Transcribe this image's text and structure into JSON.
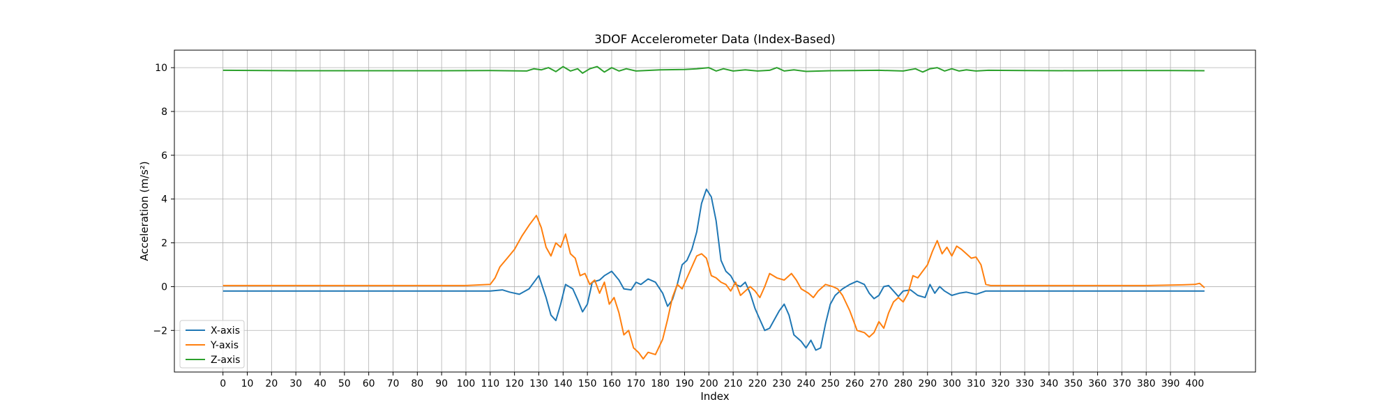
{
  "chart_data": {
    "type": "line",
    "title": "3DOF Accelerometer Data (Index-Based)",
    "xlabel": "Index",
    "ylabel": "Acceleration (m/s²)",
    "xlim": [
      -20,
      425
    ],
    "ylim": [
      -3.9,
      10.8
    ],
    "xticks": [
      0,
      10,
      20,
      30,
      40,
      50,
      60,
      70,
      80,
      90,
      100,
      110,
      120,
      130,
      140,
      150,
      160,
      170,
      180,
      190,
      200,
      210,
      220,
      230,
      240,
      250,
      260,
      270,
      280,
      290,
      300,
      310,
      320,
      330,
      340,
      350,
      360,
      370,
      380,
      390,
      400
    ],
    "yticks": [
      -2,
      0,
      2,
      4,
      6,
      8,
      10
    ],
    "ytick_labels": [
      "−2",
      "0",
      "2",
      "4",
      "6",
      "8",
      "10"
    ],
    "grid": true,
    "legend_position": "lower-left",
    "series": [
      {
        "name": "X-axis",
        "color": "#1f77b4",
        "points": [
          [
            0,
            -0.2
          ],
          [
            20,
            -0.2
          ],
          [
            40,
            -0.2
          ],
          [
            60,
            -0.2
          ],
          [
            80,
            -0.2
          ],
          [
            100,
            -0.2
          ],
          [
            110,
            -0.2
          ],
          [
            115,
            -0.15
          ],
          [
            118,
            -0.25
          ],
          [
            122,
            -0.35
          ],
          [
            126,
            -0.1
          ],
          [
            130,
            0.5
          ],
          [
            133,
            -0.5
          ],
          [
            135,
            -1.3
          ],
          [
            137,
            -1.55
          ],
          [
            139,
            -0.8
          ],
          [
            141,
            0.1
          ],
          [
            144,
            -0.1
          ],
          [
            146,
            -0.6
          ],
          [
            148,
            -1.15
          ],
          [
            150,
            -0.8
          ],
          [
            152,
            0.2
          ],
          [
            155,
            0.3
          ],
          [
            157,
            0.5
          ],
          [
            160,
            0.7
          ],
          [
            163,
            0.3
          ],
          [
            165,
            -0.1
          ],
          [
            168,
            -0.15
          ],
          [
            170,
            0.2
          ],
          [
            172,
            0.1
          ],
          [
            175,
            0.35
          ],
          [
            178,
            0.2
          ],
          [
            181,
            -0.3
          ],
          [
            183,
            -0.9
          ],
          [
            185,
            -0.6
          ],
          [
            187,
            0.1
          ],
          [
            189,
            1.0
          ],
          [
            191,
            1.2
          ],
          [
            193,
            1.7
          ],
          [
            195,
            2.5
          ],
          [
            197,
            3.8
          ],
          [
            199,
            4.45
          ],
          [
            201,
            4.1
          ],
          [
            203,
            3.0
          ],
          [
            205,
            1.2
          ],
          [
            207,
            0.7
          ],
          [
            209,
            0.5
          ],
          [
            211,
            0.1
          ],
          [
            213,
            0.0
          ],
          [
            215,
            0.2
          ],
          [
            217,
            -0.3
          ],
          [
            219,
            -1.0
          ],
          [
            221,
            -1.5
          ],
          [
            223,
            -2.0
          ],
          [
            225,
            -1.9
          ],
          [
            227,
            -1.5
          ],
          [
            229,
            -1.1
          ],
          [
            231,
            -0.8
          ],
          [
            233,
            -1.3
          ],
          [
            235,
            -2.2
          ],
          [
            238,
            -2.5
          ],
          [
            240,
            -2.8
          ],
          [
            242,
            -2.45
          ],
          [
            244,
            -2.9
          ],
          [
            246,
            -2.8
          ],
          [
            248,
            -1.7
          ],
          [
            250,
            -0.8
          ],
          [
            252,
            -0.4
          ],
          [
            255,
            -0.1
          ],
          [
            258,
            0.1
          ],
          [
            261,
            0.25
          ],
          [
            264,
            0.1
          ],
          [
            266,
            -0.3
          ],
          [
            268,
            -0.55
          ],
          [
            270,
            -0.4
          ],
          [
            272,
            0.0
          ],
          [
            274,
            0.05
          ],
          [
            276,
            -0.2
          ],
          [
            278,
            -0.45
          ],
          [
            280,
            -0.2
          ],
          [
            283,
            -0.15
          ],
          [
            286,
            -0.4
          ],
          [
            289,
            -0.5
          ],
          [
            291,
            0.1
          ],
          [
            293,
            -0.3
          ],
          [
            295,
            0.0
          ],
          [
            297,
            -0.2
          ],
          [
            300,
            -0.4
          ],
          [
            303,
            -0.3
          ],
          [
            306,
            -0.25
          ],
          [
            310,
            -0.35
          ],
          [
            314,
            -0.2
          ],
          [
            320,
            -0.2
          ],
          [
            340,
            -0.2
          ],
          [
            360,
            -0.2
          ],
          [
            380,
            -0.2
          ],
          [
            400,
            -0.2
          ],
          [
            404,
            -0.2
          ]
        ]
      },
      {
        "name": "Y-axis",
        "color": "#ff7f0e",
        "points": [
          [
            0,
            0.05
          ],
          [
            20,
            0.05
          ],
          [
            40,
            0.05
          ],
          [
            60,
            0.05
          ],
          [
            80,
            0.05
          ],
          [
            100,
            0.05
          ],
          [
            110,
            0.1
          ],
          [
            112,
            0.4
          ],
          [
            114,
            0.9
          ],
          [
            117,
            1.3
          ],
          [
            120,
            1.7
          ],
          [
            123,
            2.3
          ],
          [
            126,
            2.8
          ],
          [
            129,
            3.25
          ],
          [
            131,
            2.7
          ],
          [
            133,
            1.8
          ],
          [
            135,
            1.4
          ],
          [
            137,
            2.0
          ],
          [
            139,
            1.8
          ],
          [
            141,
            2.4
          ],
          [
            143,
            1.5
          ],
          [
            145,
            1.3
          ],
          [
            147,
            0.5
          ],
          [
            149,
            0.6
          ],
          [
            151,
            0.1
          ],
          [
            153,
            0.3
          ],
          [
            155,
            -0.3
          ],
          [
            157,
            0.2
          ],
          [
            159,
            -0.8
          ],
          [
            161,
            -0.5
          ],
          [
            163,
            -1.2
          ],
          [
            165,
            -2.2
          ],
          [
            167,
            -2.0
          ],
          [
            169,
            -2.8
          ],
          [
            171,
            -3.0
          ],
          [
            173,
            -3.3
          ],
          [
            175,
            -3.0
          ],
          [
            178,
            -3.1
          ],
          [
            181,
            -2.4
          ],
          [
            183,
            -1.5
          ],
          [
            185,
            -0.5
          ],
          [
            187,
            0.1
          ],
          [
            189,
            -0.1
          ],
          [
            191,
            0.4
          ],
          [
            193,
            0.9
          ],
          [
            195,
            1.4
          ],
          [
            197,
            1.5
          ],
          [
            199,
            1.3
          ],
          [
            201,
            0.5
          ],
          [
            203,
            0.4
          ],
          [
            205,
            0.2
          ],
          [
            207,
            0.1
          ],
          [
            209,
            -0.2
          ],
          [
            211,
            0.2
          ],
          [
            213,
            -0.4
          ],
          [
            215,
            -0.2
          ],
          [
            217,
            0.0
          ],
          [
            219,
            -0.2
          ],
          [
            221,
            -0.5
          ],
          [
            223,
            0.0
          ],
          [
            225,
            0.6
          ],
          [
            228,
            0.4
          ],
          [
            231,
            0.3
          ],
          [
            234,
            0.6
          ],
          [
            236,
            0.3
          ],
          [
            238,
            -0.1
          ],
          [
            241,
            -0.3
          ],
          [
            243,
            -0.5
          ],
          [
            245,
            -0.2
          ],
          [
            248,
            0.1
          ],
          [
            251,
            0.0
          ],
          [
            253,
            -0.1
          ],
          [
            255,
            -0.4
          ],
          [
            258,
            -1.1
          ],
          [
            261,
            -2.0
          ],
          [
            264,
            -2.1
          ],
          [
            266,
            -2.3
          ],
          [
            268,
            -2.1
          ],
          [
            270,
            -1.6
          ],
          [
            272,
            -1.9
          ],
          [
            274,
            -1.2
          ],
          [
            276,
            -0.7
          ],
          [
            278,
            -0.5
          ],
          [
            280,
            -0.7
          ],
          [
            282,
            -0.3
          ],
          [
            284,
            0.5
          ],
          [
            286,
            0.4
          ],
          [
            288,
            0.7
          ],
          [
            290,
            1.0
          ],
          [
            292,
            1.6
          ],
          [
            294,
            2.1
          ],
          [
            296,
            1.5
          ],
          [
            298,
            1.8
          ],
          [
            300,
            1.4
          ],
          [
            302,
            1.85
          ],
          [
            304,
            1.7
          ],
          [
            306,
            1.5
          ],
          [
            308,
            1.3
          ],
          [
            310,
            1.35
          ],
          [
            312,
            1.0
          ],
          [
            314,
            0.1
          ],
          [
            316,
            0.05
          ],
          [
            340,
            0.05
          ],
          [
            360,
            0.05
          ],
          [
            380,
            0.05
          ],
          [
            395,
            0.08
          ],
          [
            400,
            0.1
          ],
          [
            402,
            0.15
          ],
          [
            404,
            -0.05
          ]
        ]
      },
      {
        "name": "Z-axis",
        "color": "#2ca02c",
        "points": [
          [
            0,
            9.88
          ],
          [
            30,
            9.86
          ],
          [
            60,
            9.86
          ],
          [
            90,
            9.86
          ],
          [
            110,
            9.87
          ],
          [
            125,
            9.85
          ],
          [
            128,
            9.95
          ],
          [
            131,
            9.9
          ],
          [
            134,
            10.0
          ],
          [
            137,
            9.82
          ],
          [
            140,
            10.05
          ],
          [
            143,
            9.85
          ],
          [
            146,
            9.95
          ],
          [
            148,
            9.75
          ],
          [
            151,
            9.95
          ],
          [
            154,
            10.05
          ],
          [
            157,
            9.8
          ],
          [
            160,
            10.0
          ],
          [
            163,
            9.85
          ],
          [
            166,
            9.95
          ],
          [
            170,
            9.85
          ],
          [
            180,
            9.9
          ],
          [
            190,
            9.92
          ],
          [
            195,
            9.95
          ],
          [
            200,
            10.0
          ],
          [
            203,
            9.85
          ],
          [
            206,
            9.95
          ],
          [
            210,
            9.85
          ],
          [
            215,
            9.9
          ],
          [
            220,
            9.85
          ],
          [
            225,
            9.88
          ],
          [
            228,
            10.0
          ],
          [
            231,
            9.85
          ],
          [
            235,
            9.9
          ],
          [
            240,
            9.83
          ],
          [
            250,
            9.86
          ],
          [
            260,
            9.87
          ],
          [
            270,
            9.88
          ],
          [
            280,
            9.85
          ],
          [
            285,
            9.95
          ],
          [
            288,
            9.8
          ],
          [
            291,
            9.95
          ],
          [
            294,
            10.0
          ],
          [
            297,
            9.85
          ],
          [
            300,
            9.95
          ],
          [
            303,
            9.85
          ],
          [
            306,
            9.9
          ],
          [
            310,
            9.85
          ],
          [
            315,
            9.88
          ],
          [
            330,
            9.87
          ],
          [
            350,
            9.86
          ],
          [
            370,
            9.87
          ],
          [
            390,
            9.87
          ],
          [
            404,
            9.86
          ]
        ]
      }
    ]
  }
}
